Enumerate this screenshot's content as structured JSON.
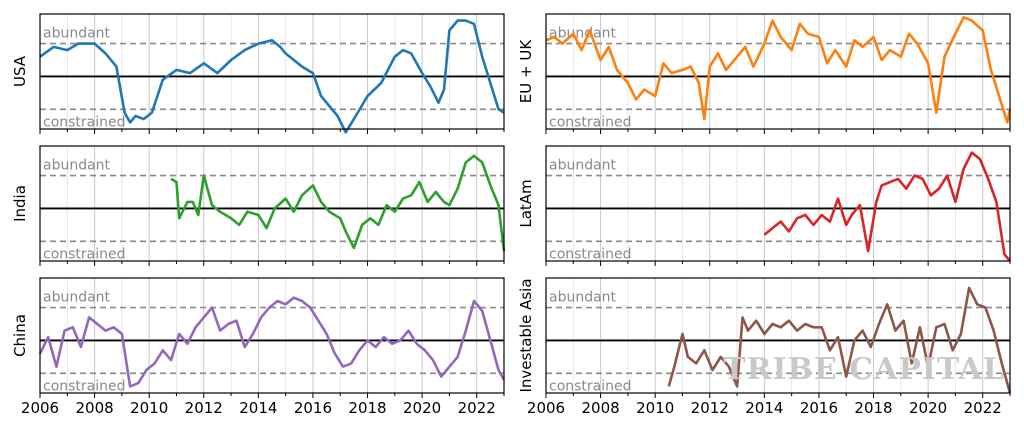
{
  "chart_data": {
    "type": "line",
    "xlim": [
      2006,
      2023
    ],
    "ylim": [
      -1.6,
      1.9
    ],
    "x_ticks": [
      "2006",
      "2008",
      "2010",
      "2012",
      "2014",
      "2016",
      "2018",
      "2020",
      "2022"
    ],
    "zone_labels": {
      "upper": "abundant",
      "lower": "constrained"
    },
    "reference_levels": {
      "abundant": 1.0,
      "neutral": 0.0,
      "constrained": -1.0
    },
    "watermark": "TRIBE CAPITAL",
    "panels": [
      {
        "name": "USA",
        "color": "#1f77b4",
        "x": [
          2006,
          2006.5,
          2007,
          2007.4,
          2008,
          2008.4,
          2008.8,
          2009.1,
          2009.3,
          2009.5,
          2009.8,
          2010.1,
          2010.5,
          2011,
          2011.5,
          2012,
          2012.5,
          2013,
          2013.5,
          2014,
          2014.5,
          2014.8,
          2015,
          2015.3,
          2015.6,
          2016,
          2016.3,
          2016.6,
          2016.9,
          2017.2,
          2017.5,
          2018,
          2018.5,
          2019,
          2019.3,
          2019.6,
          2020,
          2020.3,
          2020.6,
          2020.8,
          2021,
          2021.3,
          2021.6,
          2021.9,
          2022.2,
          2022.5,
          2022.8,
          2023
        ],
        "y": [
          0.6,
          0.9,
          0.8,
          1.0,
          1.0,
          0.7,
          0.3,
          -1.1,
          -1.4,
          -1.2,
          -1.3,
          -1.1,
          -0.1,
          0.2,
          0.1,
          0.4,
          0.1,
          0.5,
          0.8,
          1.0,
          1.1,
          0.9,
          0.7,
          0.5,
          0.3,
          0.1,
          -0.6,
          -0.9,
          -1.2,
          -1.7,
          -1.3,
          -0.6,
          -0.2,
          0.6,
          0.8,
          0.7,
          0.1,
          -0.3,
          -0.8,
          -0.4,
          1.4,
          1.7,
          1.7,
          1.6,
          0.6,
          -0.2,
          -1.0,
          -1.1
        ]
      },
      {
        "name": "EU + UK",
        "color": "#ff7f0e",
        "x": [
          2006,
          2006.3,
          2006.6,
          2007,
          2007.3,
          2007.6,
          2008,
          2008.3,
          2008.6,
          2009,
          2009.3,
          2009.6,
          2010,
          2010.3,
          2010.6,
          2011,
          2011.3,
          2011.6,
          2011.8,
          2012,
          2012.3,
          2012.6,
          2013,
          2013.3,
          2013.6,
          2014,
          2014.3,
          2014.6,
          2015,
          2015.3,
          2015.6,
          2016,
          2016.3,
          2016.6,
          2017,
          2017.3,
          2017.6,
          2018,
          2018.3,
          2018.6,
          2019,
          2019.3,
          2019.6,
          2020,
          2020.3,
          2020.6,
          2021,
          2021.3,
          2021.6,
          2022,
          2022.3,
          2022.6,
          2022.9,
          2023
        ],
        "y": [
          1.1,
          1.2,
          1.0,
          1.3,
          0.8,
          1.4,
          0.5,
          0.9,
          0.2,
          -0.2,
          -0.7,
          -0.4,
          -0.6,
          0.4,
          0.1,
          0.2,
          0.3,
          -0.2,
          -1.3,
          0.3,
          0.7,
          0.2,
          0.6,
          0.9,
          0.3,
          1.0,
          1.7,
          1.2,
          0.8,
          1.6,
          1.3,
          1.2,
          0.4,
          0.8,
          0.3,
          1.1,
          0.9,
          1.2,
          0.5,
          0.8,
          0.6,
          1.3,
          1.0,
          0.4,
          -1.1,
          0.6,
          1.3,
          1.8,
          1.7,
          1.4,
          0.2,
          -0.6,
          -1.4,
          -1.0
        ]
      },
      {
        "name": "India",
        "color": "#2ca02c",
        "x": [
          2010.8,
          2011,
          2011.1,
          2011.4,
          2011.6,
          2011.8,
          2012,
          2012.3,
          2012.6,
          2013,
          2013.3,
          2013.6,
          2014,
          2014.3,
          2014.6,
          2015,
          2015.3,
          2015.6,
          2016,
          2016.3,
          2016.6,
          2017,
          2017.2,
          2017.5,
          2017.8,
          2018.1,
          2018.4,
          2018.7,
          2019,
          2019.3,
          2019.6,
          2019.9,
          2020.2,
          2020.5,
          2020.8,
          2021,
          2021.3,
          2021.6,
          2021.9,
          2022.2,
          2022.5,
          2022.8,
          2023
        ],
        "y": [
          0.9,
          0.8,
          -0.3,
          0.2,
          0.2,
          -0.2,
          1.0,
          0.1,
          -0.1,
          -0.3,
          -0.5,
          -0.1,
          -0.2,
          -0.6,
          0.0,
          0.3,
          -0.1,
          0.4,
          0.7,
          0.2,
          -0.1,
          -0.3,
          -0.7,
          -1.2,
          -0.5,
          -0.3,
          -0.5,
          0.1,
          -0.1,
          0.3,
          0.4,
          0.8,
          0.2,
          0.5,
          0.2,
          0.1,
          0.6,
          1.4,
          1.6,
          1.4,
          0.7,
          0.1,
          -1.3
        ]
      },
      {
        "name": "LatAm",
        "color": "#d62728",
        "x": [
          2014,
          2014.3,
          2014.6,
          2014.9,
          2015.2,
          2015.5,
          2015.8,
          2016.1,
          2016.4,
          2016.7,
          2017,
          2017.2,
          2017.5,
          2017.8,
          2018.1,
          2018.3,
          2018.6,
          2018.9,
          2019.2,
          2019.5,
          2019.8,
          2020.1,
          2020.4,
          2020.7,
          2021,
          2021.3,
          2021.6,
          2021.9,
          2022.2,
          2022.5,
          2022.8,
          2023
        ],
        "y": [
          -0.8,
          -0.6,
          -0.4,
          -0.7,
          -0.3,
          -0.2,
          -0.5,
          -0.2,
          -0.4,
          0.3,
          -0.5,
          -0.2,
          0.1,
          -1.3,
          0.2,
          0.7,
          0.8,
          0.9,
          0.6,
          1.0,
          0.9,
          0.4,
          0.6,
          1.0,
          0.2,
          1.2,
          1.7,
          1.5,
          0.9,
          0.2,
          -1.4,
          -1.6
        ]
      },
      {
        "name": "China",
        "color": "#9467bd",
        "x": [
          2006,
          2006.3,
          2006.6,
          2006.9,
          2007.2,
          2007.5,
          2007.8,
          2008.1,
          2008.4,
          2008.7,
          2009,
          2009.3,
          2009.6,
          2009.9,
          2010.2,
          2010.5,
          2010.8,
          2011.1,
          2011.4,
          2011.7,
          2012,
          2012.3,
          2012.6,
          2012.9,
          2013.2,
          2013.5,
          2013.8,
          2014.1,
          2014.4,
          2014.7,
          2015,
          2015.3,
          2015.6,
          2015.9,
          2016.2,
          2016.5,
          2016.8,
          2017.1,
          2017.4,
          2017.7,
          2018,
          2018.3,
          2018.6,
          2018.9,
          2019.2,
          2019.5,
          2019.8,
          2020.1,
          2020.4,
          2020.7,
          2021,
          2021.3,
          2021.6,
          2021.9,
          2022.2,
          2022.5,
          2022.8,
          2023
        ],
        "y": [
          -0.4,
          0.1,
          -0.8,
          0.3,
          0.4,
          -0.2,
          0.7,
          0.5,
          0.3,
          0.4,
          0.2,
          -1.4,
          -1.3,
          -0.9,
          -0.7,
          -0.3,
          -0.6,
          0.2,
          -0.1,
          0.4,
          0.7,
          1.0,
          0.3,
          0.5,
          0.6,
          -0.2,
          0.2,
          0.7,
          1.0,
          1.2,
          1.1,
          1.3,
          1.2,
          1.0,
          0.6,
          0.2,
          -0.4,
          -0.8,
          -0.7,
          -0.3,
          0.0,
          -0.2,
          0.1,
          -0.1,
          0.0,
          0.3,
          -0.1,
          -0.3,
          -0.6,
          -1.1,
          -0.8,
          -0.5,
          0.3,
          1.2,
          0.9,
          0.0,
          -0.9,
          -1.2
        ]
      },
      {
        "name": "Investable Asia",
        "color": "#8c564b",
        "x": [
          2010.5,
          2010.7,
          2011,
          2011.2,
          2011.5,
          2011.8,
          2012.1,
          2012.4,
          2012.7,
          2013,
          2013.2,
          2013.4,
          2013.7,
          2014,
          2014.3,
          2014.6,
          2014.9,
          2015.2,
          2015.5,
          2015.8,
          2016.1,
          2016.4,
          2016.7,
          2017,
          2017.3,
          2017.6,
          2017.9,
          2018.2,
          2018.5,
          2018.8,
          2019.1,
          2019.4,
          2019.7,
          2020,
          2020.3,
          2020.6,
          2020.9,
          2021.2,
          2021.5,
          2021.8,
          2022.1,
          2022.4,
          2022.7,
          2023
        ],
        "y": [
          -1.4,
          -0.8,
          0.2,
          -0.5,
          -0.7,
          -0.3,
          -0.9,
          -0.5,
          -0.8,
          -1.4,
          0.7,
          0.3,
          0.6,
          0.2,
          0.5,
          0.4,
          0.6,
          0.3,
          0.5,
          0.4,
          0.4,
          -0.3,
          0.1,
          -1.1,
          0.0,
          0.3,
          -0.2,
          0.5,
          1.1,
          0.3,
          0.6,
          -0.7,
          0.4,
          -0.8,
          0.4,
          0.5,
          -0.3,
          0.2,
          1.6,
          1.1,
          1.0,
          0.3,
          -0.7,
          -1.6
        ]
      }
    ]
  }
}
